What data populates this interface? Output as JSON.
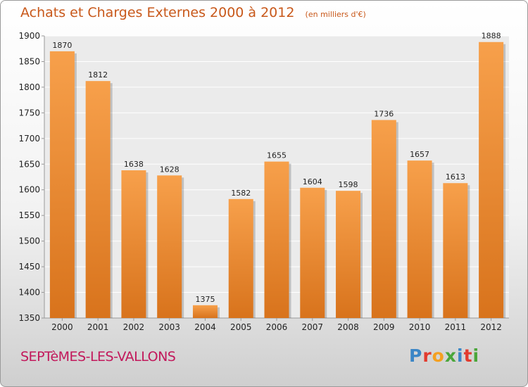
{
  "header": {
    "title": "Achats et Charges Externes 2000 à 2012",
    "unit": "(en milliers d'€)"
  },
  "footer": {
    "commune": "SEPTèMES-LES-VALLONS",
    "brand": "Proxiti"
  },
  "colors": {
    "bar_light": "#f7a04b",
    "bar_dark": "#d8731c",
    "title": "#c8581a",
    "commune": "#c2185b"
  },
  "chart_data": {
    "type": "bar",
    "categories": [
      "2000",
      "2001",
      "2002",
      "2003",
      "2004",
      "2005",
      "2006",
      "2007",
      "2008",
      "2009",
      "2010",
      "2011",
      "2012"
    ],
    "values": [
      1870,
      1812,
      1638,
      1628,
      1375,
      1582,
      1655,
      1604,
      1598,
      1736,
      1657,
      1613,
      1888
    ],
    "ylim": [
      1350,
      1900
    ],
    "yticks": [
      1350,
      1400,
      1450,
      1500,
      1550,
      1600,
      1650,
      1700,
      1750,
      1800,
      1850,
      1900
    ],
    "grid": true,
    "title": "Achats et Charges Externes 2000 à 2012",
    "xlabel": "",
    "ylabel": ""
  }
}
